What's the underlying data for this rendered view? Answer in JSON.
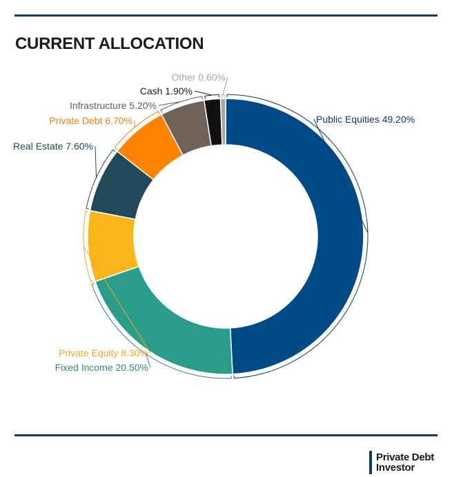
{
  "title": "CURRENT ALLOCATION",
  "brand": {
    "line1": "Private Debt",
    "line2": "Investor"
  },
  "chart_data": {
    "type": "pie",
    "subtype": "donut",
    "title": "CURRENT ALLOCATION",
    "categories": [
      "Public Equities",
      "Fixed Income",
      "Private Equity",
      "Real Estate",
      "Private Debt",
      "Infrastructure",
      "Cash",
      "Other"
    ],
    "values": [
      49.2,
      20.5,
      8.3,
      7.6,
      6.7,
      5.2,
      1.9,
      0.6
    ],
    "labels": [
      "Public Equities 49.20%",
      "Fixed Income 20.50%",
      "Private Equity 8.30%",
      "Real Estate 7.60%",
      "Private Debt 6.70%",
      "Infrastructure 5.20%",
      "Cash 1.90%",
      "Other 0.60%"
    ],
    "colors": [
      "#004a87",
      "#2a9d8a",
      "#fbb51c",
      "#22495a",
      "#ff8200",
      "#6f6258",
      "#111111",
      "#a6a6a6"
    ],
    "label_colors": [
      "#0b3a66",
      "#2a8a7a",
      "#f5a623",
      "#2a4753",
      "#f07e10",
      "#5d5d5d",
      "#1b1b1b",
      "#a6a6a6"
    ],
    "legend": "none",
    "start": "12 o'clock, clockwise"
  }
}
